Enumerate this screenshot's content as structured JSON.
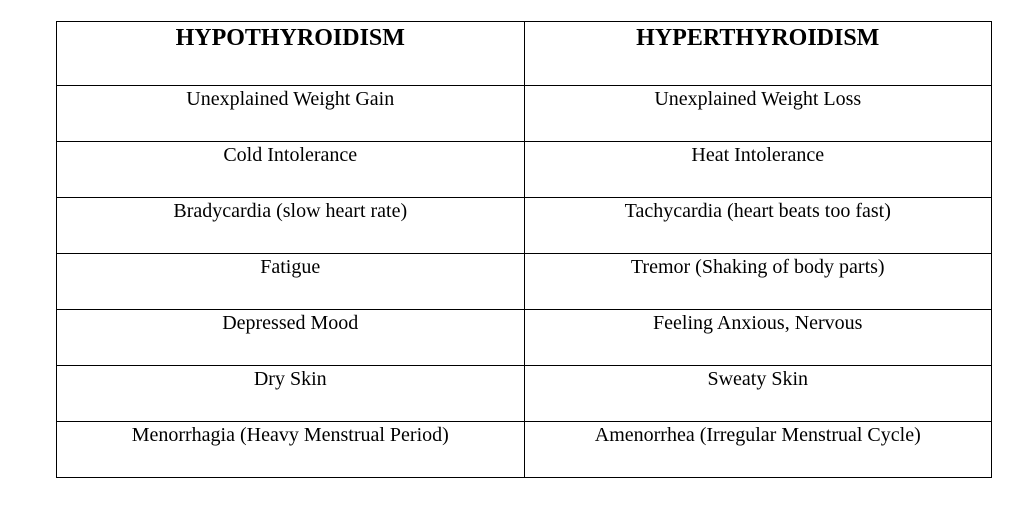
{
  "table": {
    "headers": [
      "HYPOTHYROIDISM",
      "HYPERTHYROIDISM"
    ],
    "rows": [
      [
        "Unexplained Weight Gain",
        "Unexplained Weight Loss"
      ],
      [
        "Cold Intolerance",
        "Heat Intolerance"
      ],
      [
        "Bradycardia (slow heart rate)",
        "Tachycardia (heart beats too fast)"
      ],
      [
        "Fatigue",
        "Tremor (Shaking of body parts)"
      ],
      [
        "Depressed Mood",
        "Feeling Anxious, Nervous"
      ],
      [
        "Dry Skin",
        "Sweaty Skin"
      ],
      [
        "Menorrhagia (Heavy Menstrual Period)",
        "Amenorrhea (Irregular Menstrual Cycle)"
      ]
    ]
  }
}
